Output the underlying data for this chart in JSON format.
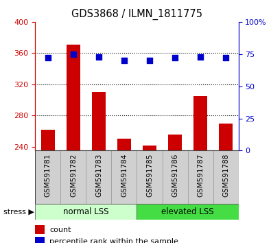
{
  "title": "GDS3868 / ILMN_1811775",
  "categories": [
    "GSM591781",
    "GSM591782",
    "GSM591783",
    "GSM591784",
    "GSM591785",
    "GSM591786",
    "GSM591787",
    "GSM591788"
  ],
  "bar_values": [
    262,
    371,
    310,
    250,
    242,
    256,
    305,
    270
  ],
  "percentile_values": [
    72,
    75,
    73,
    70,
    70,
    72,
    73,
    72
  ],
  "bar_color": "#cc0000",
  "percentile_color": "#0000cc",
  "ylim_left": [
    235,
    400
  ],
  "ylim_right": [
    0,
    100
  ],
  "yticks_left": [
    240,
    280,
    320,
    360,
    400
  ],
  "yticks_right": [
    0,
    25,
    50,
    75,
    100
  ],
  "grid_values": [
    280,
    320,
    360
  ],
  "group_labels": [
    "normal LSS",
    "elevated LSS"
  ],
  "group_split": 4,
  "group_color_light": "#ccffcc",
  "group_color_dark": "#44dd44",
  "stress_label": "stress ▶",
  "legend_count": "count",
  "legend_percentile": "percentile rank within the sample",
  "bar_bottom": 235,
  "col_bg_color": "#d0d0d0",
  "col_border_color": "#999999",
  "spine_color": "#444444",
  "left_axis_color": "#cc0000",
  "right_axis_color": "#0000cc"
}
